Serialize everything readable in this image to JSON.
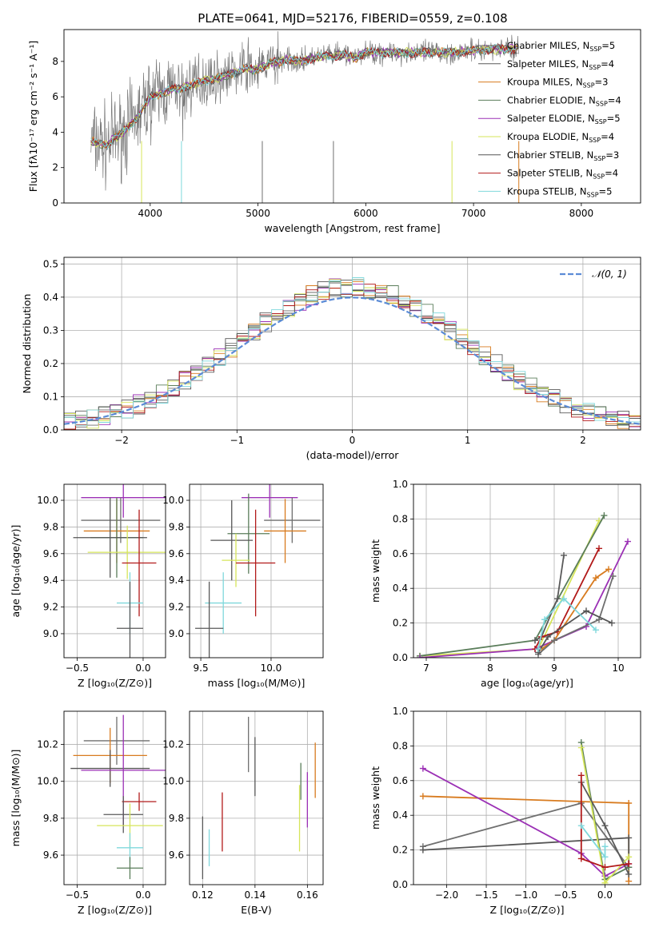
{
  "figure_title": "PLATE=0641, MJD=52176, FIBERID=0559, z=0.108",
  "models": [
    {
      "name": "Chabrier MILES",
      "n": "5",
      "color": "#6f6f6f"
    },
    {
      "name": "Salpeter MILES",
      "n": "4",
      "color": "#5a5a5a"
    },
    {
      "name": "Kroupa MILES",
      "n": "3",
      "color": "#d87b1f"
    },
    {
      "name": "Chabrier ELODIE",
      "n": "4",
      "color": "#5a7d5a"
    },
    {
      "name": "Salpeter ELODIE",
      "n": "5",
      "color": "#9b30b5"
    },
    {
      "name": "Kroupa ELODIE",
      "n": "4",
      "color": "#d6e55a"
    },
    {
      "name": "Chabrier STELIB",
      "n": "3",
      "color": "#555555"
    },
    {
      "name": "Salpeter STELIB",
      "n": "4",
      "color": "#b21a1a"
    },
    {
      "name": "Kroupa STELIB",
      "n": "5",
      "color": "#7fd8dc"
    }
  ],
  "chart_data": [
    {
      "id": "spectrum",
      "type": "line",
      "xlabel": "wavelength [Angstrom, rest frame]",
      "ylabel": "Flux [fλ10⁻¹⁷ erg cm⁻² s⁻¹ A⁻¹]",
      "xlim": [
        3200,
        8550
      ],
      "ylim": [
        0,
        9.8
      ],
      "xticks": [
        4000,
        5000,
        6000,
        7000,
        8000
      ],
      "yticks": [
        0,
        2,
        4,
        6,
        8
      ],
      "grid": false,
      "legend": "right",
      "model_curve": {
        "x": [
          3450,
          3500,
          3600,
          3700,
          3800,
          3900,
          4000,
          4100,
          4200,
          4300,
          4400,
          4500,
          4600,
          4700,
          4800,
          4900,
          5000,
          5100,
          5200,
          5300,
          5400,
          5500,
          5600,
          5700,
          5800,
          5900,
          6000,
          6200,
          6400,
          6600,
          6800,
          7000,
          7200,
          7400
        ],
        "y": [
          3.5,
          3.4,
          3.3,
          3.8,
          4.3,
          5.0,
          6.0,
          6.2,
          6.4,
          6.5,
          6.7,
          6.9,
          7.0,
          7.2,
          7.4,
          7.6,
          7.5,
          7.9,
          8.0,
          8.1,
          8.0,
          8.2,
          8.3,
          8.3,
          8.4,
          8.2,
          8.5,
          8.5,
          8.5,
          8.5,
          8.5,
          8.6,
          8.7,
          8.7
        ]
      }
    },
    {
      "id": "residuals",
      "type": "step",
      "xlabel": "(data-model)/error",
      "ylabel": "Normed distribution",
      "xlim": [
        -2.5,
        2.5
      ],
      "ylim": [
        0,
        0.52
      ],
      "xticks": [
        -2,
        -1,
        0,
        1,
        2
      ],
      "xtick_labels": [
        "−2",
        "−1",
        "0",
        "1",
        "2"
      ],
      "yticks": [
        0,
        0.1,
        0.2,
        0.3,
        0.4,
        0.5
      ],
      "ytick_labels": [
        "0.0",
        "0.1",
        "0.2",
        "0.3",
        "0.4",
        "0.5"
      ],
      "grid": true,
      "legend": "top-right",
      "gaussian_label": "𝒩(0, 1)"
    },
    {
      "id": "age_vs_Z",
      "type": "errorbar",
      "xlabel": "Z [log₁₀(Z/Z⊙)]",
      "ylabel": "age  [log₁₀(age/yr)]",
      "xlim": [
        -0.6,
        0.17
      ],
      "ylim": [
        8.82,
        10.12
      ],
      "xticks": [
        -0.5,
        0.0
      ],
      "xtick_labels": [
        "−0.5",
        "0.0"
      ],
      "yticks": [
        9.0,
        9.2,
        9.4,
        9.6,
        9.8,
        10.0
      ],
      "ytick_labels": [
        "9.0",
        "9.2",
        "9.4",
        "9.6",
        "9.8",
        "10.0"
      ],
      "grid": true,
      "points": [
        {
          "m": 4,
          "x": -0.15,
          "xe": 0.32,
          "y": 10.02,
          "ye": 0.15
        },
        {
          "m": 0,
          "x": -0.17,
          "xe": 0.3,
          "y": 9.85,
          "ye": 0.17
        },
        {
          "m": 2,
          "x": -0.2,
          "xe": 0.25,
          "y": 9.77,
          "ye": 0.24
        },
        {
          "m": 3,
          "x": -0.2,
          "xe": 0.2,
          "y": 9.72,
          "ye": 0.3
        },
        {
          "m": 6,
          "x": -0.25,
          "xe": 0.28,
          "y": 9.72,
          "ye": 0.3
        },
        {
          "m": 5,
          "x": -0.12,
          "xe": 0.3,
          "y": 9.61,
          "ye": 0.2
        },
        {
          "m": 7,
          "x": -0.03,
          "xe": 0.13,
          "y": 9.53,
          "ye": 0.4
        },
        {
          "m": 8,
          "x": -0.1,
          "xe": 0.1,
          "y": 9.23,
          "ye": 0.23
        },
        {
          "m": 1,
          "x": -0.1,
          "xe": 0.1,
          "y": 9.04,
          "ye": 0.35
        }
      ]
    },
    {
      "id": "age_vs_mass",
      "type": "errorbar",
      "xlabel": "mass [log₁₀(M/M⊙)]",
      "ylabel": "",
      "xlim": [
        9.42,
        10.37
      ],
      "ylim": [
        8.82,
        10.12
      ],
      "xticks": [
        9.5,
        10.0
      ],
      "xtick_labels": [
        "9.5",
        "10.0"
      ],
      "yticks": [
        9.0,
        9.2,
        9.4,
        9.6,
        9.8,
        10.0
      ],
      "ytick_labels": [
        "9.0",
        "9.2",
        "9.4",
        "9.6",
        "9.8",
        "10.0"
      ],
      "grid": true,
      "points": [
        {
          "m": 4,
          "x": 9.99,
          "xe": 0.2,
          "y": 10.02,
          "ye": 0.15
        },
        {
          "m": 0,
          "x": 10.15,
          "xe": 0.2,
          "y": 9.85,
          "ye": 0.17
        },
        {
          "m": 2,
          "x": 10.1,
          "xe": 0.15,
          "y": 9.77,
          "ye": 0.24
        },
        {
          "m": 3,
          "x": 9.84,
          "xe": 0.15,
          "y": 9.75,
          "ye": 0.3
        },
        {
          "m": 6,
          "x": 9.72,
          "xe": 0.15,
          "y": 9.7,
          "ye": 0.3
        },
        {
          "m": 5,
          "x": 9.75,
          "xe": 0.1,
          "y": 9.55,
          "ye": 0.2
        },
        {
          "m": 7,
          "x": 9.89,
          "xe": 0.14,
          "y": 9.53,
          "ye": 0.4
        },
        {
          "m": 8,
          "x": 9.66,
          "xe": 0.13,
          "y": 9.23,
          "ye": 0.23
        },
        {
          "m": 1,
          "x": 9.56,
          "xe": 0.1,
          "y": 9.04,
          "ye": 0.35
        }
      ]
    },
    {
      "id": "massweight_vs_age",
      "type": "line",
      "xlabel": "age  [log₁₀(age/yr)]",
      "ylabel": "mass weight",
      "xlim": [
        6.8,
        10.35
      ],
      "ylim": [
        0,
        1
      ],
      "xticks": [
        7,
        8,
        9,
        10
      ],
      "xtick_labels": [
        "7",
        "8",
        "9",
        "10"
      ],
      "yticks": [
        0,
        0.2,
        0.4,
        0.6,
        0.8,
        1.0
      ],
      "ytick_labels": [
        "0.0",
        "0.2",
        "0.4",
        "0.6",
        "0.8",
        "1.0"
      ],
      "grid": true,
      "lines": [
        {
          "m": 5,
          "x": [
            6.9,
            8.75,
            9.7
          ],
          "y": [
            0.01,
            0.05,
            0.79
          ]
        },
        {
          "m": 3,
          "x": [
            6.9,
            8.7,
            9.78
          ],
          "y": [
            0.01,
            0.1,
            0.82
          ]
        },
        {
          "m": 4,
          "x": [
            6.9,
            8.7,
            9.5,
            10.15
          ],
          "y": [
            0.0,
            0.05,
            0.18,
            0.67
          ]
        },
        {
          "m": 1,
          "x": [
            8.7,
            8.8,
            9.05,
            9.15
          ],
          "y": [
            0.1,
            0.12,
            0.34,
            0.59
          ]
        },
        {
          "m": 7,
          "x": [
            8.7,
            8.8,
            9.05,
            9.7
          ],
          "y": [
            0.05,
            0.12,
            0.15,
            0.63
          ]
        },
        {
          "m": 2,
          "x": [
            8.8,
            9.0,
            9.65,
            9.85
          ],
          "y": [
            0.05,
            0.1,
            0.46,
            0.51
          ]
        },
        {
          "m": 0,
          "x": [
            8.75,
            9.0,
            9.7,
            9.92
          ],
          "y": [
            0.02,
            0.1,
            0.22,
            0.47
          ]
        },
        {
          "m": 6,
          "x": [
            8.75,
            8.9,
            9.5,
            9.9
          ],
          "y": [
            0.03,
            0.12,
            0.27,
            0.2
          ]
        },
        {
          "m": 8,
          "x": [
            8.75,
            8.85,
            9.15,
            9.65
          ],
          "y": [
            0.05,
            0.22,
            0.34,
            0.16
          ]
        }
      ]
    },
    {
      "id": "mass_vs_Z",
      "type": "errorbar",
      "xlabel": "Z [log₁₀(Z/Z⊙)]",
      "ylabel": "mass [log₁₀(M/M⊙)]",
      "xlim": [
        -0.6,
        0.17
      ],
      "ylim": [
        9.44,
        10.38
      ],
      "xticks": [
        -0.5,
        0.0
      ],
      "xtick_labels": [
        "−0.5",
        "0.0"
      ],
      "yticks": [
        9.6,
        9.8,
        10.0,
        10.2
      ],
      "ytick_labels": [
        "9.6",
        "9.8",
        "10.0",
        "10.2"
      ],
      "grid": true,
      "points": [
        {
          "m": 0,
          "x": -0.2,
          "xe": 0.25,
          "y": 10.22,
          "ye": 0.13
        },
        {
          "m": 2,
          "x": -0.25,
          "xe": 0.28,
          "y": 10.14,
          "ye": 0.15
        },
        {
          "m": 6,
          "x": -0.25,
          "xe": 0.3,
          "y": 10.07,
          "ye": 0.1
        },
        {
          "m": 4,
          "x": -0.15,
          "xe": 0.32,
          "y": 10.06,
          "ye": 0.3
        },
        {
          "m": 7,
          "x": -0.03,
          "xe": 0.13,
          "y": 9.89,
          "ye": 0.05
        },
        {
          "m": 1,
          "x": -0.15,
          "xe": 0.15,
          "y": 9.82,
          "ye": 0.1
        },
        {
          "m": 5,
          "x": -0.1,
          "xe": 0.25,
          "y": 9.76,
          "ye": 0.12
        },
        {
          "m": 8,
          "x": -0.1,
          "xe": 0.1,
          "y": 9.64,
          "ye": 0.08
        },
        {
          "m": 3,
          "x": -0.1,
          "xe": 0.1,
          "y": 9.53,
          "ye": 0.06
        }
      ]
    },
    {
      "id": "mass_vs_ebv",
      "type": "errorbar",
      "xlabel": "E(B-V)",
      "ylabel": "",
      "xlim": [
        0.115,
        0.166
      ],
      "ylim": [
        9.44,
        10.38
      ],
      "xticks": [
        0.12,
        0.14,
        0.16
      ],
      "xtick_labels": [
        "0.12",
        "0.14",
        "0.16"
      ],
      "yticks": [
        9.6,
        9.8,
        10.0,
        10.2
      ],
      "ytick_labels": [
        "9.6",
        "9.8",
        "10.0",
        "10.2"
      ],
      "grid": true,
      "points": [
        {
          "m": 1,
          "x": 0.12,
          "xe": 0,
          "y": 9.64,
          "ye": 0.17
        },
        {
          "m": 8,
          "x": 0.1225,
          "xe": 0,
          "y": 9.64,
          "ye": 0.1
        },
        {
          "m": 7,
          "x": 0.1275,
          "xe": 0,
          "y": 9.78,
          "ye": 0.16
        },
        {
          "m": 0,
          "x": 0.1375,
          "xe": 0,
          "y": 10.2,
          "ye": 0.15
        },
        {
          "m": 6,
          "x": 0.14,
          "xe": 0,
          "y": 10.08,
          "ye": 0.16
        },
        {
          "m": 5,
          "x": 0.157,
          "xe": 0,
          "y": 9.8,
          "ye": 0.18
        },
        {
          "m": 3,
          "x": 0.1575,
          "xe": 0,
          "y": 10.0,
          "ye": 0.1
        },
        {
          "m": 4,
          "x": 0.16,
          "xe": 0,
          "y": 9.9,
          "ye": 0.15
        },
        {
          "m": 2,
          "x": 0.163,
          "xe": 0,
          "y": 10.06,
          "ye": 0.15
        }
      ]
    },
    {
      "id": "massweight_vs_Z",
      "type": "line",
      "xlabel": "Z [log₁₀(Z/Z⊙)]",
      "ylabel": "mass weight",
      "xlim": [
        -2.42,
        0.45
      ],
      "ylim": [
        0,
        1
      ],
      "xticks": [
        -2.0,
        -1.5,
        -1.0,
        -0.5,
        0.0
      ],
      "xtick_labels": [
        "−2.0",
        "−1.5",
        "−1.0",
        "−0.5",
        "0.0"
      ],
      "yticks": [
        0,
        0.2,
        0.4,
        0.6,
        0.8,
        1.0
      ],
      "ytick_labels": [
        "0.0",
        "0.2",
        "0.4",
        "0.6",
        "0.8",
        "1.0"
      ],
      "grid": true,
      "lines": [
        {
          "m": 2,
          "x": [
            -2.3,
            0.3,
            0.3
          ],
          "y": [
            0.51,
            0.47,
            0.02
          ]
        },
        {
          "m": 0,
          "x": [
            -2.3,
            -0.3,
            0.3
          ],
          "y": [
            0.22,
            0.47,
            0.1
          ]
        },
        {
          "m": 6,
          "x": [
            -2.3,
            0.3,
            0.3
          ],
          "y": [
            0.2,
            0.27,
            0.1
          ]
        },
        {
          "m": 4,
          "x": [
            -2.3,
            -0.3,
            0.0,
            0.3
          ],
          "y": [
            0.67,
            0.18,
            0.05,
            0.12
          ]
        },
        {
          "m": 3,
          "x": [
            -0.3,
            0.0,
            0.3
          ],
          "y": [
            0.82,
            0.03,
            0.1
          ]
        },
        {
          "m": 5,
          "x": [
            -0.3,
            0.0,
            0.3
          ],
          "y": [
            0.79,
            0.01,
            0.16
          ]
        },
        {
          "m": 1,
          "x": [
            -0.3,
            0.0,
            0.3
          ],
          "y": [
            0.59,
            0.34,
            0.06
          ]
        },
        {
          "m": 7,
          "x": [
            -0.3,
            -0.3,
            0.0,
            0.3
          ],
          "y": [
            0.63,
            0.15,
            0.1,
            0.12
          ]
        },
        {
          "m": 8,
          "x": [
            -0.3,
            0.0,
            0.0
          ],
          "y": [
            0.34,
            0.16,
            0.22
          ]
        }
      ]
    }
  ]
}
